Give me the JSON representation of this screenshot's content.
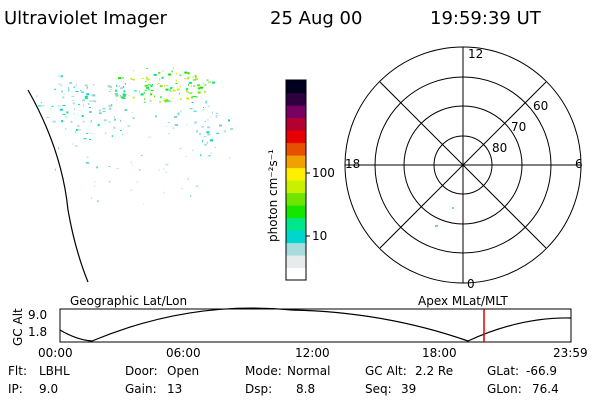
{
  "header": {
    "title": "Ultraviolet Imager",
    "date": "25 Aug 00",
    "time": "19:59:39 UT"
  },
  "colorbar": {
    "unit_label": "photon cm⁻²s⁻¹",
    "tick_labels": [
      "100",
      "10"
    ],
    "tick_values": [
      100,
      10
    ],
    "scale": "log",
    "range": [
      2,
      3000
    ],
    "colors_bottom_to_top": [
      "#ffffff",
      "#e6ecec",
      "#a7dcdc",
      "#00d5d0",
      "#00e68a",
      "#14e600",
      "#6ee600",
      "#c8f000",
      "#fff000",
      "#f0a000",
      "#e65000",
      "#e60000",
      "#b40030",
      "#780060",
      "#2e0040",
      "#000020"
    ]
  },
  "polar_plot": {
    "hour_labels": [
      "12",
      "18",
      "6",
      "0"
    ],
    "lat_labels": [
      "60",
      "70",
      "80"
    ],
    "lat_values": [
      60,
      70,
      80
    ]
  },
  "timeline": {
    "left_title": "Geographic Lat/Lon",
    "right_title": "Apex MLat/MLT",
    "y_label": "GC Alt",
    "y_ticks": [
      "9.0",
      "1.8"
    ],
    "y_values": [
      9.0,
      1.8
    ],
    "x_ticks": [
      "00:00",
      "06:00",
      "12:00",
      "18:00",
      "23:59"
    ],
    "current_time": "19:59:39"
  },
  "status": {
    "rows": [
      [
        {
          "key": "Flt:",
          "val": "LBHL"
        },
        {
          "key": "Door:",
          "val": "Open"
        },
        {
          "key": "Mode:",
          "val": "Normal"
        },
        {
          "key": "GC Alt:",
          "val": "2.2 Re"
        },
        {
          "key": "GLat:",
          "val": "-66.9"
        }
      ],
      [
        {
          "key": "IP:",
          "val": "9.0"
        },
        {
          "key": "Gain:",
          "val": "13"
        },
        {
          "key": "Dsp:",
          "val": "8.8"
        },
        {
          "key": "Seq:",
          "val": "39"
        },
        {
          "key": "GLon:",
          "val": "76.4"
        }
      ]
    ]
  },
  "colors": {
    "marker": "#e00000",
    "ink": "#000000"
  }
}
